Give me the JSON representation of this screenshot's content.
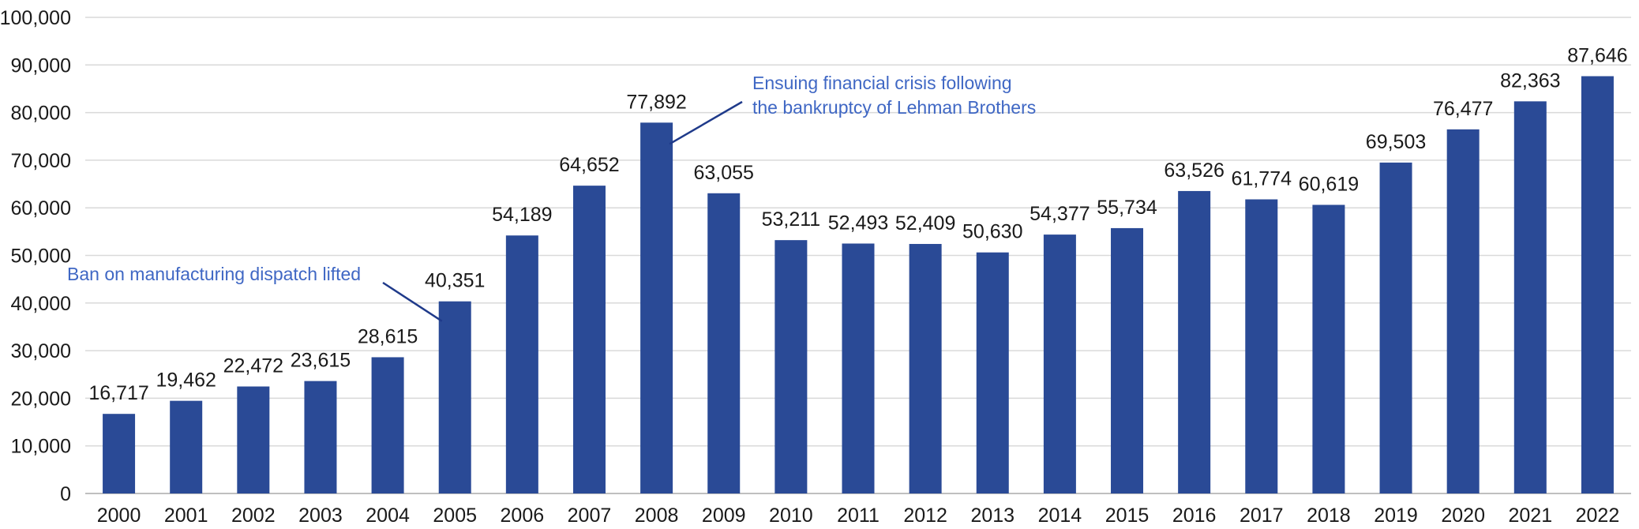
{
  "chart_data": {
    "type": "bar",
    "categories": [
      "2000",
      "2001",
      "2002",
      "2003",
      "2004",
      "2005",
      "2006",
      "2007",
      "2008",
      "2009",
      "2010",
      "2011",
      "2012",
      "2013",
      "2014",
      "2015",
      "2016",
      "2017",
      "2018",
      "2019",
      "2020",
      "2021",
      "2022"
    ],
    "values": [
      16717,
      19462,
      22472,
      23615,
      28615,
      40351,
      54189,
      64652,
      77892,
      63055,
      53211,
      52493,
      52409,
      50630,
      54377,
      55734,
      63526,
      61774,
      60619,
      69503,
      76477,
      82363,
      87646
    ],
    "data_labels": [
      "16,717",
      "19,462",
      "22,472",
      "23,615",
      "28,615",
      "40,351",
      "54,189",
      "64,652",
      "77,892",
      "63,055",
      "53,211",
      "52,493",
      "52,409",
      "50,630",
      "54,377",
      "55,734",
      "63,526",
      "61,774",
      "60,619",
      "69,503",
      "76,477",
      "82,363",
      "87,646"
    ],
    "title": "",
    "xlabel": "",
    "ylabel": "",
    "ylim": [
      0,
      100000
    ],
    "yticks": [
      0,
      10000,
      20000,
      30000,
      40000,
      50000,
      60000,
      70000,
      80000,
      90000,
      100000
    ],
    "ytick_labels": [
      "0",
      "10,000",
      "20,000",
      "30,000",
      "40,000",
      "50,000",
      "60,000",
      "70,000",
      "80,000",
      "90,000",
      "100,000"
    ],
    "grid": true,
    "legend": "none",
    "bar_color": "#2a4a96",
    "grid_color": "#d9d9d9",
    "annotations": [
      {
        "lines": [
          "Ban on manufacturing dispatch lifted"
        ],
        "target_category": "2005",
        "color": "#3f67c4"
      },
      {
        "lines": [
          "Ensuing financial crisis following",
          "the bankruptcy of Lehman Brothers"
        ],
        "target_category": "2008",
        "color": "#3f67c4"
      }
    ]
  }
}
